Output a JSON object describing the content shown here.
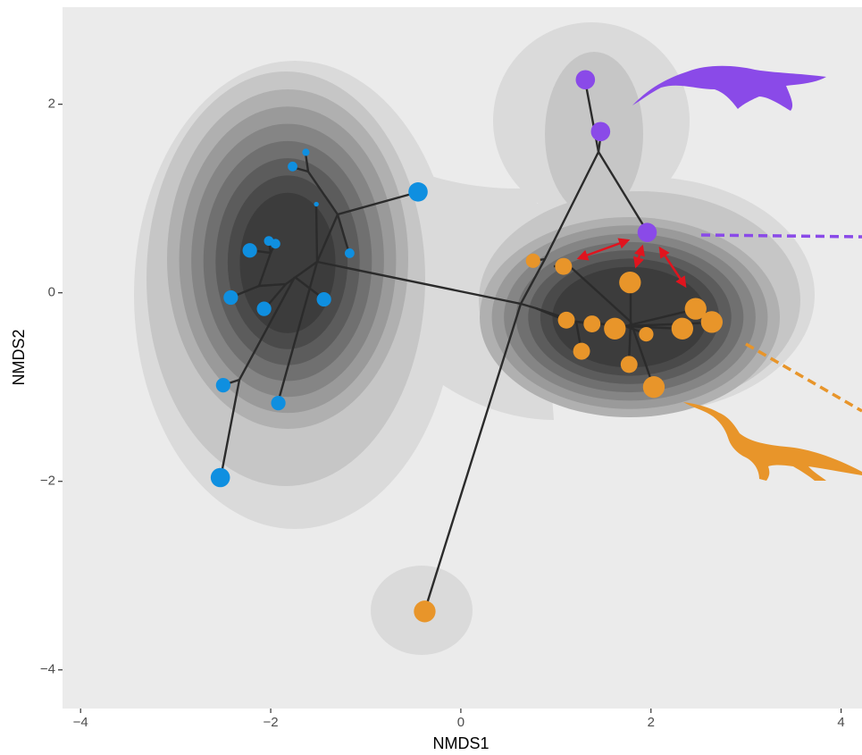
{
  "chart_data": {
    "type": "scatter",
    "xlabel": "NMDS1",
    "ylabel": "NMDS2",
    "xlim": [
      -4.19,
      4.22
    ],
    "ylim": [
      -4.41,
      3.03
    ],
    "xticks": [
      {
        "value": -4,
        "label": "−4"
      },
      {
        "value": -2,
        "label": "−2"
      },
      0,
      2,
      4
    ],
    "yticks": [
      {
        "value": -4,
        "label": "−4"
      },
      {
        "value": -2,
        "label": "−2"
      },
      0,
      2
    ],
    "grid": false,
    "series": [
      {
        "color": "#0f8fe0",
        "x": [
          -0.45,
          -1.63,
          -1.77,
          -1.52,
          -1.17,
          -2.22,
          -2.02,
          -1.95,
          -2.42,
          -2.07,
          -1.44,
          -2.5,
          -1.92,
          -2.53
        ],
        "y": [
          1.07,
          1.49,
          1.34,
          0.94,
          0.42,
          0.45,
          0.55,
          0.52,
          -0.05,
          -0.17,
          -0.07,
          -0.98,
          -1.17,
          -1.96
        ],
        "size": [
          4,
          1.5,
          2,
          1,
          2,
          3,
          2,
          2,
          3,
          3,
          3,
          3,
          3,
          4
        ]
      },
      {
        "color": "#8a4ae8",
        "x": [
          1.31,
          1.47,
          1.96
        ],
        "y": [
          2.26,
          1.71,
          0.64
        ],
        "size": [
          4,
          4,
          4
        ]
      },
      {
        "color": "#e8952a",
        "x": [
          0.76,
          1.08,
          1.78,
          1.11,
          1.38,
          1.62,
          1.95,
          2.47,
          2.33,
          2.64,
          1.27,
          1.77,
          2.03,
          -0.38
        ],
        "y": [
          0.34,
          0.28,
          0.11,
          -0.29,
          -0.33,
          -0.38,
          -0.44,
          -0.17,
          -0.38,
          -0.31,
          -0.62,
          -0.76,
          -1.0,
          -3.38
        ],
        "size": [
          3,
          3.5,
          4.5,
          3.5,
          3.5,
          4.5,
          3,
          4.5,
          4.5,
          4.5,
          3.5,
          3.5,
          4.5,
          4.5
        ]
      }
    ]
  }
}
